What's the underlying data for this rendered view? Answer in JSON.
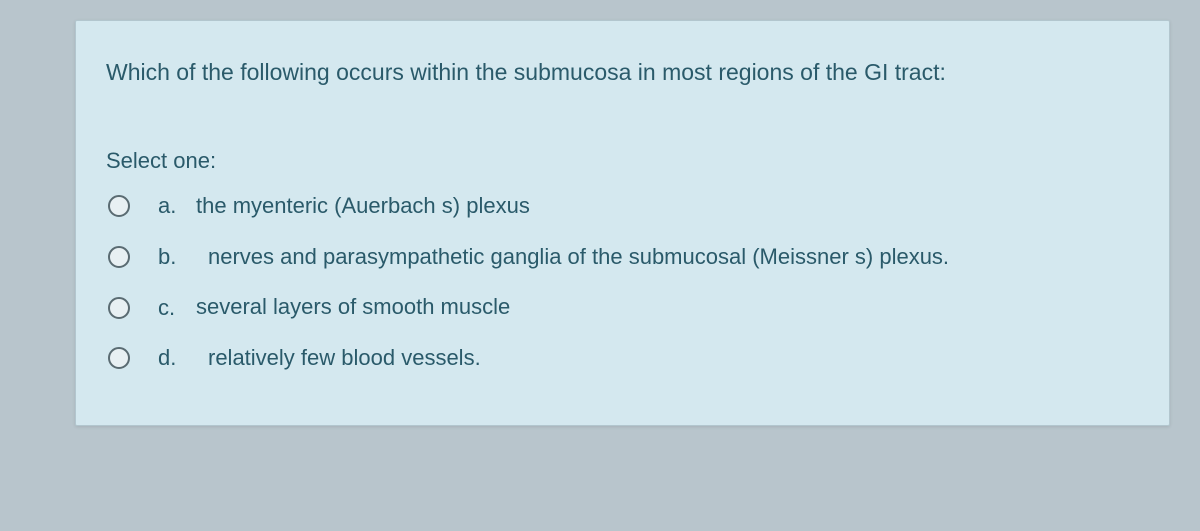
{
  "quiz": {
    "question": "Which of the following occurs within the submucosa in most regions of the GI tract:",
    "instruction": "Select one:",
    "options": [
      {
        "letter": "a.",
        "text": "the myenteric (Auerbach s) plexus"
      },
      {
        "letter": "b.",
        "text": "nerves and parasympathetic ganglia of the submucosal (Meissner s) plexus."
      },
      {
        "letter": "c.",
        "text": "several layers of smooth muscle"
      },
      {
        "letter": "d.",
        "text": "relatively few blood vessels."
      }
    ]
  },
  "styling": {
    "page_background": "#b8c5cc",
    "card_background": "#d4e8ef",
    "text_color": "#2a5a6a",
    "question_fontsize": 23,
    "option_fontsize": 22,
    "radio_border_color": "#5a6b72",
    "radio_background": "#e8f0f3"
  }
}
